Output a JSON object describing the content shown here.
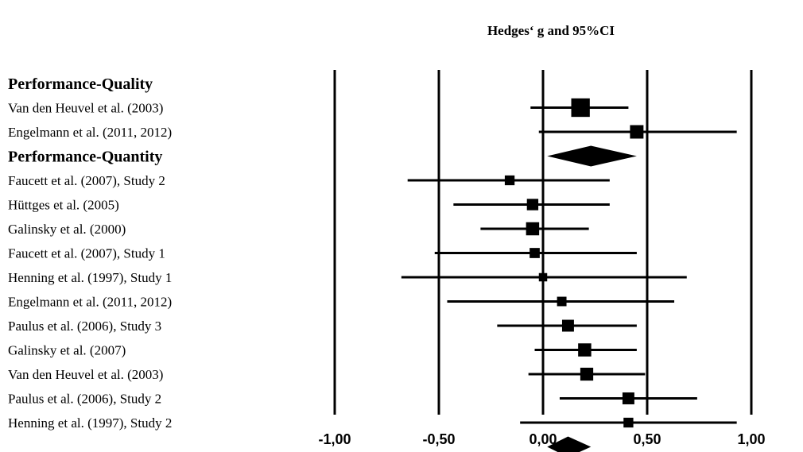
{
  "chart_data": {
    "type": "forest",
    "title": "Hedges‘ g and 95%CI",
    "xlim": [
      -1.0,
      1.0
    ],
    "xticks": [
      -1.0,
      -0.5,
      0.0,
      0.5,
      1.0
    ],
    "xtick_labels": [
      "-1,00",
      "-0,50",
      "0,00",
      "0,50",
      "1,00"
    ],
    "vertical_lines_at": [
      -1.0,
      -0.5,
      0.0,
      0.5,
      1.0
    ],
    "groups": [
      {
        "name": "Performance-Quality",
        "studies": [
          {
            "label": "Van den Heuvel et al. (2003)",
            "g": 0.18,
            "lower": -0.06,
            "upper": 0.41,
            "weight": 3.0
          },
          {
            "label": "Engelmann et al. (2011, 2012)",
            "g": 0.45,
            "lower": -0.02,
            "upper": 0.93,
            "weight": 1.2
          }
        ],
        "summary": {
          "g": 0.23,
          "lower": 0.02,
          "upper": 0.45
        }
      },
      {
        "name": "Performance-Quantity",
        "studies": [
          {
            "label": "Faucett et al. (2007), Study 2",
            "g": -0.16,
            "lower": -0.65,
            "upper": 0.32,
            "weight": 0.4
          },
          {
            "label": "Hüttges et al. (2005)",
            "g": -0.05,
            "lower": -0.43,
            "upper": 0.32,
            "weight": 0.7
          },
          {
            "label": "Galinsky et al. (2000)",
            "g": -0.05,
            "lower": -0.3,
            "upper": 0.22,
            "weight": 1.1
          },
          {
            "label": "Faucett et al. (2007), Study 1",
            "g": -0.04,
            "lower": -0.52,
            "upper": 0.45,
            "weight": 0.45
          },
          {
            "label": "Henning et al. (1997), Study 1",
            "g": 0.0,
            "lower": -0.68,
            "upper": 0.69,
            "weight": 0.2
          },
          {
            "label": "Engelmann et al. (2011, 2012)",
            "g": 0.09,
            "lower": -0.46,
            "upper": 0.63,
            "weight": 0.35
          },
          {
            "label": "Paulus et al. (2006), Study 3",
            "g": 0.12,
            "lower": -0.22,
            "upper": 0.45,
            "weight": 0.8
          },
          {
            "label": "Galinsky et al. (2007)",
            "g": 0.2,
            "lower": -0.04,
            "upper": 0.45,
            "weight": 1.1
          },
          {
            "label": "Van den Heuvel et al. (2003)",
            "g": 0.21,
            "lower": -0.07,
            "upper": 0.49,
            "weight": 1.05
          },
          {
            "label": "Paulus et al. (2006), Study 2",
            "g": 0.41,
            "lower": 0.08,
            "upper": 0.74,
            "weight": 0.8
          },
          {
            "label": "Henning et al. (1997), Study 2",
            "g": 0.41,
            "lower": -0.11,
            "upper": 0.93,
            "weight": 0.4
          }
        ],
        "summary": {
          "g": 0.12,
          "lower": 0.02,
          "upper": 0.23
        }
      }
    ]
  }
}
